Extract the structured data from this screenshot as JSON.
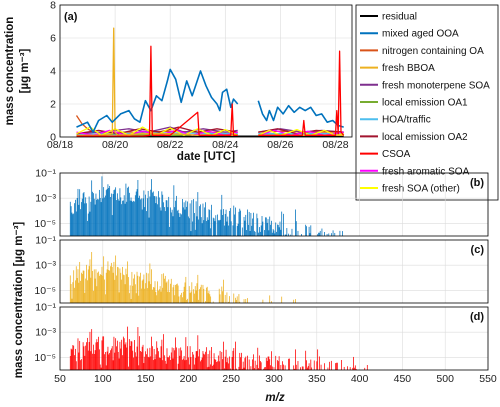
{
  "chart_data": [
    {
      "type": "line",
      "panel": "(a)",
      "xlabel": "date [UTC]",
      "ylabel_lines": [
        "mass concentration",
        "[µg m⁻³]"
      ],
      "xlim": [
        18.0,
        28.6
      ],
      "ylim": [
        0,
        8
      ],
      "xticks": [
        18,
        20,
        22,
        24,
        26,
        28
      ],
      "xtick_labels": [
        "08/18",
        "08/20",
        "08/22",
        "08/24",
        "08/26",
        "08/28"
      ],
      "yticks": [
        0,
        2,
        4,
        6,
        8
      ],
      "ytick_labels": [
        "0",
        "2",
        "4",
        "6",
        "8"
      ],
      "grid": true,
      "legend": "outside-right",
      "series": [
        {
          "name": "residual",
          "color": "#000000",
          "points": [
            [
              18.6,
              0.05
            ],
            [
              28.3,
              0.05
            ]
          ]
        },
        {
          "name": "mixed aged OOA",
          "color": "#0072BD",
          "points": [
            [
              18.6,
              0.6
            ],
            [
              19.0,
              0.9
            ],
            [
              19.2,
              0.3
            ],
            [
              19.4,
              1.0
            ],
            [
              19.7,
              1.3
            ],
            [
              19.9,
              0.9
            ],
            [
              20.2,
              1.4
            ],
            [
              20.5,
              1.6
            ],
            [
              20.7,
              1.1
            ],
            [
              20.9,
              0.9
            ],
            [
              21.1,
              2.2
            ],
            [
              21.3,
              1.6
            ],
            [
              21.5,
              2.5
            ],
            [
              21.7,
              2.2
            ],
            [
              21.9,
              3.4
            ],
            [
              22.0,
              4.1
            ],
            [
              22.2,
              3.5
            ],
            [
              22.4,
              2.1
            ],
            [
              22.6,
              3.4
            ],
            [
              22.8,
              2.5
            ],
            [
              22.9,
              3.0
            ],
            [
              23.1,
              4.0
            ],
            [
              23.3,
              3.1
            ],
            [
              23.5,
              2.4
            ],
            [
              23.7,
              2.0
            ],
            [
              23.8,
              1.6
            ],
            [
              23.9,
              2.7
            ],
            [
              24.05,
              2.9
            ],
            [
              24.2,
              1.8
            ],
            [
              24.3,
              2.3
            ],
            [
              24.45,
              2.0
            ],
            [
              24.6,
              null
            ],
            [
              25.2,
              2.2
            ],
            [
              25.35,
              1.4
            ],
            [
              25.5,
              1.0
            ],
            [
              25.6,
              1.6
            ],
            [
              25.75,
              1.0
            ],
            [
              25.9,
              1.8
            ],
            [
              26.1,
              1.4
            ],
            [
              26.3,
              1.9
            ],
            [
              26.5,
              1.5
            ],
            [
              26.7,
              1.8
            ],
            [
              26.9,
              1.6
            ],
            [
              27.1,
              1.8
            ],
            [
              27.3,
              1.3
            ],
            [
              27.5,
              1.4
            ],
            [
              27.7,
              0.9
            ],
            [
              27.9,
              1.0
            ],
            [
              28.1,
              0.7
            ],
            [
              28.3,
              0.6
            ]
          ]
        },
        {
          "name": "nitrogen containing OA",
          "color": "#D95319",
          "points": [
            [
              18.6,
              1.3
            ],
            [
              18.8,
              0.8
            ],
            [
              19.0,
              0.5
            ],
            [
              19.2,
              0.3
            ],
            [
              19.6,
              0.25
            ],
            [
              20.0,
              0.3
            ],
            [
              21.0,
              0.3
            ],
            [
              22.0,
              0.35
            ],
            [
              23.0,
              0.3
            ],
            [
              24.0,
              0.3
            ],
            [
              24.45,
              0.3
            ],
            [
              24.6,
              null
            ],
            [
              25.2,
              0.3
            ],
            [
              26.0,
              0.35
            ],
            [
              27.0,
              0.3
            ],
            [
              28.3,
              0.3
            ]
          ]
        },
        {
          "name": "fresh BBOA",
          "color": "#EDB120",
          "points": [
            [
              18.6,
              0.1
            ],
            [
              19.5,
              0.1
            ],
            [
              19.9,
              0.2
            ],
            [
              19.95,
              6.6
            ],
            [
              20.0,
              0.3
            ],
            [
              20.1,
              0.1
            ],
            [
              21.0,
              0.2
            ],
            [
              22.0,
              0.2
            ],
            [
              23.0,
              0.1
            ],
            [
              24.45,
              0.1
            ],
            [
              24.6,
              null
            ],
            [
              25.2,
              0.1
            ],
            [
              28.3,
              0.1
            ]
          ]
        },
        {
          "name": "fresh monoterpene SOA",
          "color": "#7E2F8E",
          "points": [
            [
              18.6,
              0.2
            ],
            [
              19.5,
              0.3
            ],
            [
              20.5,
              0.5
            ],
            [
              21.2,
              0.3
            ],
            [
              22.0,
              0.6
            ],
            [
              22.5,
              0.3
            ],
            [
              23.2,
              0.5
            ],
            [
              24.0,
              0.3
            ],
            [
              24.45,
              0.4
            ],
            [
              24.6,
              null
            ],
            [
              25.2,
              0.3
            ],
            [
              26.0,
              0.5
            ],
            [
              26.8,
              0.3
            ],
            [
              27.5,
              0.4
            ],
            [
              28.3,
              0.3
            ]
          ]
        },
        {
          "name": "local emission OA1",
          "color": "#77AC30",
          "points": [
            [
              18.6,
              0.1
            ],
            [
              20.0,
              0.15
            ],
            [
              22.0,
              0.1
            ],
            [
              24.45,
              0.15
            ],
            [
              24.6,
              null
            ],
            [
              25.2,
              0.1
            ],
            [
              28.3,
              0.1
            ]
          ]
        },
        {
          "name": "HOA/traffic",
          "color": "#4DBEEE",
          "points": [
            [
              18.6,
              0.15
            ],
            [
              20.0,
              0.2
            ],
            [
              22.0,
              0.25
            ],
            [
              24.45,
              0.2
            ],
            [
              24.6,
              null
            ],
            [
              25.2,
              0.2
            ],
            [
              28.3,
              0.2
            ]
          ]
        },
        {
          "name": "local emission OA2",
          "color": "#A2142F",
          "points": [
            [
              18.6,
              0.2
            ],
            [
              19.4,
              0.4
            ],
            [
              20.1,
              0.2
            ],
            [
              20.9,
              0.5
            ],
            [
              21.6,
              0.3
            ],
            [
              22.3,
              0.6
            ],
            [
              23.0,
              0.3
            ],
            [
              23.7,
              0.5
            ],
            [
              24.45,
              0.3
            ],
            [
              24.6,
              null
            ],
            [
              25.2,
              0.3
            ],
            [
              25.9,
              0.5
            ],
            [
              26.6,
              0.2
            ],
            [
              27.3,
              0.4
            ],
            [
              28.3,
              0.3
            ]
          ]
        },
        {
          "name": "CSOA",
          "color": "#FF0000",
          "points": [
            [
              18.6,
              0.05
            ],
            [
              21.0,
              0.05
            ],
            [
              21.25,
              0.1
            ],
            [
              21.3,
              5.5
            ],
            [
              21.35,
              0.1
            ],
            [
              22.0,
              0.1
            ],
            [
              23.0,
              1.5
            ],
            [
              23.05,
              0.1
            ],
            [
              24.2,
              0.1
            ],
            [
              24.25,
              2.0
            ],
            [
              24.3,
              0.1
            ],
            [
              24.45,
              0.1
            ],
            [
              24.6,
              null
            ],
            [
              25.2,
              0.1
            ],
            [
              26.8,
              0.1
            ],
            [
              26.85,
              1.0
            ],
            [
              26.9,
              0.1
            ],
            [
              28.0,
              0.1
            ],
            [
              28.05,
              1.6
            ],
            [
              28.1,
              0.2
            ],
            [
              28.15,
              5.2
            ],
            [
              28.2,
              0.3
            ],
            [
              28.3,
              0.1
            ]
          ]
        },
        {
          "name": "fresh aromatic SOA",
          "color": "#FF00FF",
          "points": [
            [
              18.6,
              0.3
            ],
            [
              19.2,
              0.1
            ],
            [
              19.8,
              0.4
            ],
            [
              20.4,
              0.1
            ],
            [
              21.0,
              0.35
            ],
            [
              21.6,
              0.1
            ],
            [
              22.2,
              0.4
            ],
            [
              22.8,
              0.1
            ],
            [
              23.4,
              0.35
            ],
            [
              24.0,
              0.1
            ],
            [
              24.45,
              0.3
            ],
            [
              24.6,
              null
            ],
            [
              25.2,
              0.1
            ],
            [
              25.8,
              0.4
            ],
            [
              26.4,
              0.1
            ],
            [
              27.0,
              0.35
            ],
            [
              27.6,
              0.1
            ],
            [
              28.3,
              0.3
            ]
          ]
        },
        {
          "name": "fresh SOA (other)",
          "color": "#FFFF00",
          "points": [
            [
              18.6,
              0.2
            ],
            [
              19.1,
              0.6
            ],
            [
              19.5,
              0.1
            ],
            [
              20.0,
              0.5
            ],
            [
              20.5,
              0.1
            ],
            [
              21.0,
              0.6
            ],
            [
              21.5,
              0.1
            ],
            [
              22.0,
              0.55
            ],
            [
              22.5,
              0.1
            ],
            [
              23.0,
              0.5
            ],
            [
              23.5,
              0.1
            ],
            [
              24.0,
              0.45
            ],
            [
              24.45,
              0.1
            ],
            [
              24.6,
              null
            ],
            [
              25.2,
              0.1
            ],
            [
              25.6,
              0.4
            ],
            [
              26.0,
              0.1
            ],
            [
              26.6,
              0.45
            ],
            [
              27.1,
              0.1
            ],
            [
              27.6,
              0.4
            ],
            [
              28.0,
              0.1
            ],
            [
              28.3,
              0.2
            ]
          ]
        }
      ]
    },
    {
      "type": "bar",
      "panel": "(b)",
      "xlim": [
        50,
        550
      ],
      "ylim_log10": [
        -6,
        -1
      ],
      "yticks": [
        "10⁻¹",
        "10⁻³",
        "10⁻⁵"
      ],
      "color": "#0072BD",
      "mz_start": 62,
      "mz_end": 380,
      "peak_value": 0.012,
      "peak_mz": 110,
      "decay_mz_scale": 68,
      "approx_intensity": true
    },
    {
      "type": "bar",
      "panel": "(c)",
      "xlim": [
        50,
        550
      ],
      "ylim_log10": [
        -6,
        -1
      ],
      "yticks": [
        "10⁻¹",
        "10⁻³",
        "10⁻⁵"
      ],
      "color": "#EDB120",
      "mz_start": 62,
      "mz_end": 330,
      "peak_value": 0.002,
      "peak_mz": 90,
      "decay_mz_scale": 60,
      "approx_intensity": true
    },
    {
      "type": "bar",
      "panel": "(d)",
      "xlim": [
        50,
        550
      ],
      "ylim_log10": [
        -6,
        -1
      ],
      "yticks": [
        "10⁻¹",
        "10⁻³",
        "10⁻⁵"
      ],
      "color": "#FF0000",
      "mz_start": 62,
      "mz_end": 410,
      "peak_value": 0.0004,
      "peak_mz": 95,
      "decay_mz_scale": 120,
      "approx_intensity": true
    }
  ],
  "spectra_common": {
    "xlabel": "m/z",
    "ylabel": "mass concentration [µg m⁻³]",
    "xticks": [
      50,
      100,
      150,
      200,
      250,
      300,
      350,
      400,
      450,
      500,
      550
    ],
    "xtick_labels": [
      "50",
      "100",
      "150",
      "200",
      "250",
      "300",
      "350",
      "400",
      "450",
      "500",
      "550"
    ]
  }
}
